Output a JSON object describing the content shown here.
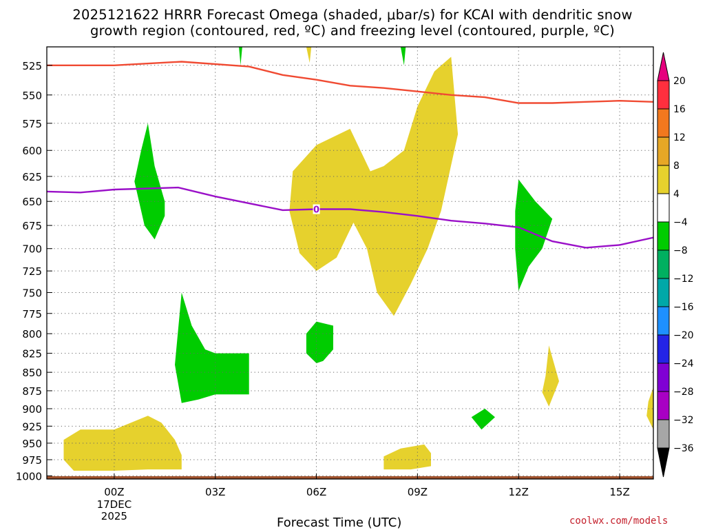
{
  "title_line1": "2025121622 HRRR Forecast Omega (shaded, μbar/s) for KCAI with dendritic snow",
  "title_line2": "growth region (contoured, red, ºC) and freezing level (contoured, purple, ºC)",
  "x_axis_title": "Forecast Time (UTC)",
  "credit": "coolwx.com/models",
  "chart_data": {
    "type": "time-height cross section",
    "title": "2025121622 HRRR Forecast Omega (shaded, μbar/s) for KCAI with dendritic snow growth region (contoured, red, ºC) and freezing level (contoured, purple, ºC)",
    "xlabel": "Forecast Time (UTC)",
    "x_unit": "hours since 2025-12-16 22Z",
    "xlim": [
      0,
      18
    ],
    "x_ticks": [
      {
        "x": 2,
        "label": "00Z",
        "sublabel1": "17DEC",
        "sublabel2": "2025"
      },
      {
        "x": 5,
        "label": "03Z"
      },
      {
        "x": 8,
        "label": "06Z"
      },
      {
        "x": 11,
        "label": "09Z"
      },
      {
        "x": 14,
        "label": "12Z"
      },
      {
        "x": 17,
        "label": "15Z"
      }
    ],
    "y_unit": "hPa",
    "ylim": [
      1005,
      510
    ],
    "y_ticks": [
      525,
      550,
      575,
      600,
      625,
      650,
      675,
      700,
      725,
      750,
      775,
      800,
      825,
      850,
      875,
      900,
      925,
      950,
      975,
      1000
    ],
    "grid": true,
    "colorbar": {
      "ticks": [
        "20",
        "16",
        "12",
        "8",
        "4",
        "−4",
        "−8",
        "−12",
        "−16",
        "−20",
        "−24",
        "−28",
        "−32",
        "−36"
      ],
      "colors": [
        "#ff2f3e",
        "#f2781e",
        "#e6a726",
        "#e6d12d",
        "#ffffff",
        "#00cc00",
        "#00b060",
        "#00a8a8",
        "#1e90ff",
        "#2424e6",
        "#8000d4",
        "#a800c4",
        "#a6a6a6"
      ],
      "top_arrow_color": "#e6007e",
      "bottom_arrow_color": "#000000"
    },
    "freezing_level_label": "0",
    "freezing_level": [
      {
        "x": 0,
        "p": 640
      },
      {
        "x": 1,
        "p": 641
      },
      {
        "x": 2,
        "p": 638
      },
      {
        "x": 3,
        "p": 637
      },
      {
        "x": 3.9,
        "p": 636
      },
      {
        "x": 5,
        "p": 645
      },
      {
        "x": 7,
        "p": 659
      },
      {
        "x": 8,
        "p": 658
      },
      {
        "x": 9,
        "p": 658
      },
      {
        "x": 10,
        "p": 661
      },
      {
        "x": 11,
        "p": 665
      },
      {
        "x": 12,
        "p": 670
      },
      {
        "x": 13,
        "p": 673
      },
      {
        "x": 14,
        "p": 677
      },
      {
        "x": 15,
        "p": 692
      },
      {
        "x": 16,
        "p": 699
      },
      {
        "x": 17,
        "p": 696
      },
      {
        "x": 18,
        "p": 688
      }
    ],
    "dgz_contour": [
      {
        "x": 0,
        "p": 525
      },
      {
        "x": 2,
        "p": 525
      },
      {
        "x": 4,
        "p": 522
      },
      {
        "x": 6,
        "p": 526
      },
      {
        "x": 7,
        "p": 533
      },
      {
        "x": 8,
        "p": 537
      },
      {
        "x": 9,
        "p": 542
      },
      {
        "x": 10,
        "p": 544
      },
      {
        "x": 11,
        "p": 547
      },
      {
        "x": 12,
        "p": 550
      },
      {
        "x": 13,
        "p": 552
      },
      {
        "x": 14,
        "p": 557
      },
      {
        "x": 15,
        "p": 557
      },
      {
        "x": 16,
        "p": 556
      },
      {
        "x": 17,
        "p": 555
      },
      {
        "x": 18,
        "p": 556
      }
    ],
    "shaded_regions": [
      {
        "color": "#e6d12d",
        "points": [
          [
            7.3,
            620
          ],
          [
            8,
            595
          ],
          [
            9,
            580
          ],
          [
            9.6,
            620
          ],
          [
            10,
            615
          ],
          [
            10.6,
            600
          ],
          [
            11,
            560
          ],
          [
            11.5,
            530
          ],
          [
            12,
            518
          ],
          [
            12.2,
            585
          ],
          [
            11.7,
            660
          ],
          [
            11.3,
            700
          ],
          [
            10.8,
            740
          ],
          [
            10.3,
            778
          ],
          [
            9.8,
            750
          ],
          [
            9.5,
            700
          ],
          [
            9.1,
            672
          ],
          [
            8.6,
            710
          ],
          [
            8,
            725
          ],
          [
            7.5,
            705
          ],
          [
            7.2,
            660
          ]
        ]
      },
      {
        "color": "#00cc00",
        "points": [
          [
            3,
            575
          ],
          [
            3.2,
            615
          ],
          [
            3.5,
            650
          ],
          [
            3.5,
            665
          ],
          [
            3.2,
            690
          ],
          [
            2.9,
            675
          ],
          [
            2.6,
            630
          ],
          [
            2.8,
            600
          ]
        ]
      },
      {
        "color": "#00cc00",
        "points": [
          [
            4,
            750
          ],
          [
            4.3,
            790
          ],
          [
            4.7,
            820
          ],
          [
            5,
            825
          ],
          [
            6,
            825
          ],
          [
            6,
            880
          ],
          [
            5,
            880
          ],
          [
            4.5,
            887
          ],
          [
            4,
            892
          ],
          [
            3.8,
            840
          ]
        ]
      },
      {
        "color": "#00cc00",
        "points": [
          [
            8,
            785
          ],
          [
            8.5,
            790
          ],
          [
            8.5,
            820
          ],
          [
            8.2,
            835
          ],
          [
            8,
            838
          ],
          [
            7.7,
            825
          ],
          [
            7.7,
            800
          ]
        ]
      },
      {
        "color": "#00cc00",
        "points": [
          [
            14,
            628
          ],
          [
            14.5,
            650
          ],
          [
            15,
            668
          ],
          [
            14.7,
            700
          ],
          [
            14.3,
            720
          ],
          [
            14,
            748
          ],
          [
            13.9,
            700
          ],
          [
            13.9,
            660
          ]
        ]
      },
      {
        "color": "#00cc00",
        "points": [
          [
            13,
            900
          ],
          [
            13.3,
            912
          ],
          [
            12.9,
            930
          ],
          [
            12.6,
            912
          ]
        ]
      },
      {
        "color": "#00cc00",
        "points": [
          [
            5.7,
            510
          ],
          [
            5.8,
            510
          ],
          [
            5.75,
            525
          ]
        ]
      },
      {
        "color": "#00cc00",
        "points": [
          [
            10.5,
            510
          ],
          [
            10.65,
            510
          ],
          [
            10.6,
            525
          ]
        ]
      },
      {
        "color": "#e6d12d",
        "points": [
          [
            7.7,
            510
          ],
          [
            7.85,
            510
          ],
          [
            7.8,
            523
          ]
        ]
      },
      {
        "color": "#e6d12d",
        "points": [
          [
            0.5,
            945
          ],
          [
            1,
            930
          ],
          [
            2,
            930
          ],
          [
            3,
            910
          ],
          [
            3.4,
            920
          ],
          [
            3.8,
            945
          ],
          [
            4,
            968
          ],
          [
            4,
            990
          ],
          [
            3,
            990
          ],
          [
            2,
            992
          ],
          [
            0.8,
            992
          ],
          [
            0.5,
            975
          ]
        ]
      },
      {
        "color": "#e6d12d",
        "points": [
          [
            10,
            970
          ],
          [
            10.5,
            958
          ],
          [
            11.2,
            952
          ],
          [
            11.4,
            965
          ],
          [
            11.4,
            985
          ],
          [
            10.8,
            990
          ],
          [
            10,
            990
          ]
        ]
      },
      {
        "color": "#e6d12d",
        "points": [
          [
            14.9,
            815
          ],
          [
            15.2,
            862
          ],
          [
            14.9,
            897
          ],
          [
            14.7,
            877
          ],
          [
            14.8,
            855
          ]
        ]
      },
      {
        "color": "#e6d12d",
        "points": [
          [
            18,
            870
          ],
          [
            18,
            930
          ],
          [
            17.8,
            910
          ],
          [
            17.85,
            890
          ]
        ]
      }
    ],
    "surface_band_color": "#a0522d",
    "surface_band_p": 1000
  }
}
